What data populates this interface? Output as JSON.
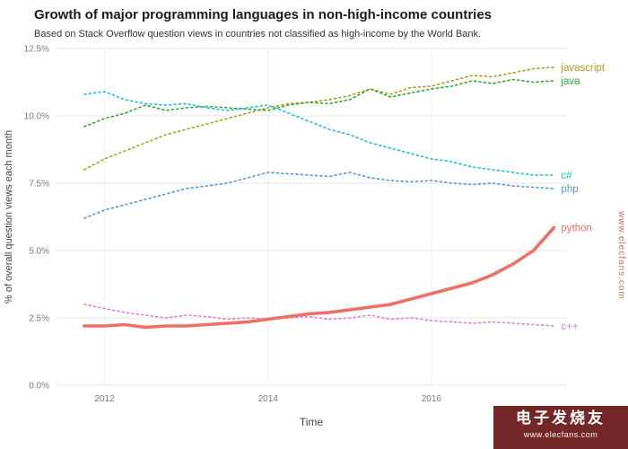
{
  "watermark": {
    "side_text": "www.elecfans.com",
    "block_title": "电子发烧友",
    "block_subtitle": "www.elecfans.com"
  },
  "chart_data": {
    "type": "line",
    "title": "Growth of major programming languages in non-high-income countries",
    "subtitle": "Based on Stack Overflow question views in countries not classified as high-income by the World Bank.",
    "xlabel": "Time",
    "ylabel": "% of overall question views each month",
    "xlim": [
      2011.4,
      2017.66
    ],
    "ylim": [
      0,
      12.5
    ],
    "grid": true,
    "legend_position": "inline-right-labels",
    "x_ticks": [
      {
        "v": 2012,
        "label": "2012"
      },
      {
        "v": 2014,
        "label": "2014"
      },
      {
        "v": 2016,
        "label": "2016"
      }
    ],
    "y_ticks": [
      {
        "v": 0,
        "label": "0.0%"
      },
      {
        "v": 2.5,
        "label": "2.5%"
      },
      {
        "v": 5,
        "label": "5.0%"
      },
      {
        "v": 7.5,
        "label": "7.5%"
      },
      {
        "v": 10,
        "label": "10.0%"
      },
      {
        "v": 12.5,
        "label": "12.5%"
      }
    ],
    "x": [
      2011.75,
      2012.0,
      2012.25,
      2012.5,
      2012.75,
      2013.0,
      2013.25,
      2013.5,
      2013.75,
      2014.0,
      2014.25,
      2014.5,
      2014.75,
      2015.0,
      2015.25,
      2015.5,
      2015.75,
      2016.0,
      2016.25,
      2016.5,
      2016.75,
      2017.0,
      2017.25,
      2017.5
    ],
    "series": [
      {
        "name": "javascript",
        "color": "#ad9c1e",
        "style": "dotted",
        "values": [
          8.0,
          8.4,
          8.7,
          9.0,
          9.3,
          9.5,
          9.7,
          9.9,
          10.1,
          10.3,
          10.45,
          10.5,
          10.6,
          10.75,
          11.0,
          10.8,
          11.05,
          11.1,
          11.3,
          11.5,
          11.45,
          11.6,
          11.75,
          11.8
        ]
      },
      {
        "name": "java",
        "color": "#33a532",
        "style": "dotted",
        "values": [
          9.6,
          9.9,
          10.1,
          10.4,
          10.2,
          10.3,
          10.35,
          10.3,
          10.25,
          10.2,
          10.4,
          10.5,
          10.45,
          10.6,
          11.0,
          10.7,
          10.85,
          11.0,
          11.1,
          11.3,
          11.2,
          11.35,
          11.25,
          11.3
        ]
      },
      {
        "name": "c#",
        "color": "#20c0ca",
        "style": "dotted",
        "values": [
          10.8,
          10.9,
          10.6,
          10.45,
          10.4,
          10.45,
          10.3,
          10.2,
          10.3,
          10.4,
          10.1,
          9.8,
          9.5,
          9.3,
          9.0,
          8.8,
          8.6,
          8.4,
          8.3,
          8.1,
          8.0,
          7.9,
          7.8,
          7.8
        ]
      },
      {
        "name": "php",
        "color": "#5e94d4",
        "style": "dotted",
        "values": [
          6.2,
          6.5,
          6.7,
          6.9,
          7.1,
          7.3,
          7.4,
          7.5,
          7.7,
          7.9,
          7.85,
          7.8,
          7.75,
          7.9,
          7.7,
          7.6,
          7.55,
          7.6,
          7.5,
          7.45,
          7.5,
          7.4,
          7.35,
          7.3
        ]
      },
      {
        "name": "c++",
        "color": "#e27fd2",
        "style": "dotted",
        "values": [
          3.0,
          2.85,
          2.7,
          2.6,
          2.5,
          2.6,
          2.55,
          2.45,
          2.5,
          2.45,
          2.5,
          2.55,
          2.45,
          2.5,
          2.6,
          2.45,
          2.5,
          2.4,
          2.35,
          2.3,
          2.35,
          2.3,
          2.25,
          2.2
        ]
      },
      {
        "name": "python",
        "color": "#ee6f63",
        "style": "solid",
        "values": [
          2.2,
          2.2,
          2.25,
          2.15,
          2.2,
          2.2,
          2.25,
          2.3,
          2.35,
          2.45,
          2.55,
          2.65,
          2.7,
          2.8,
          2.9,
          3.0,
          3.2,
          3.4,
          3.6,
          3.8,
          4.1,
          4.5,
          5.0,
          5.85
        ]
      }
    ]
  }
}
